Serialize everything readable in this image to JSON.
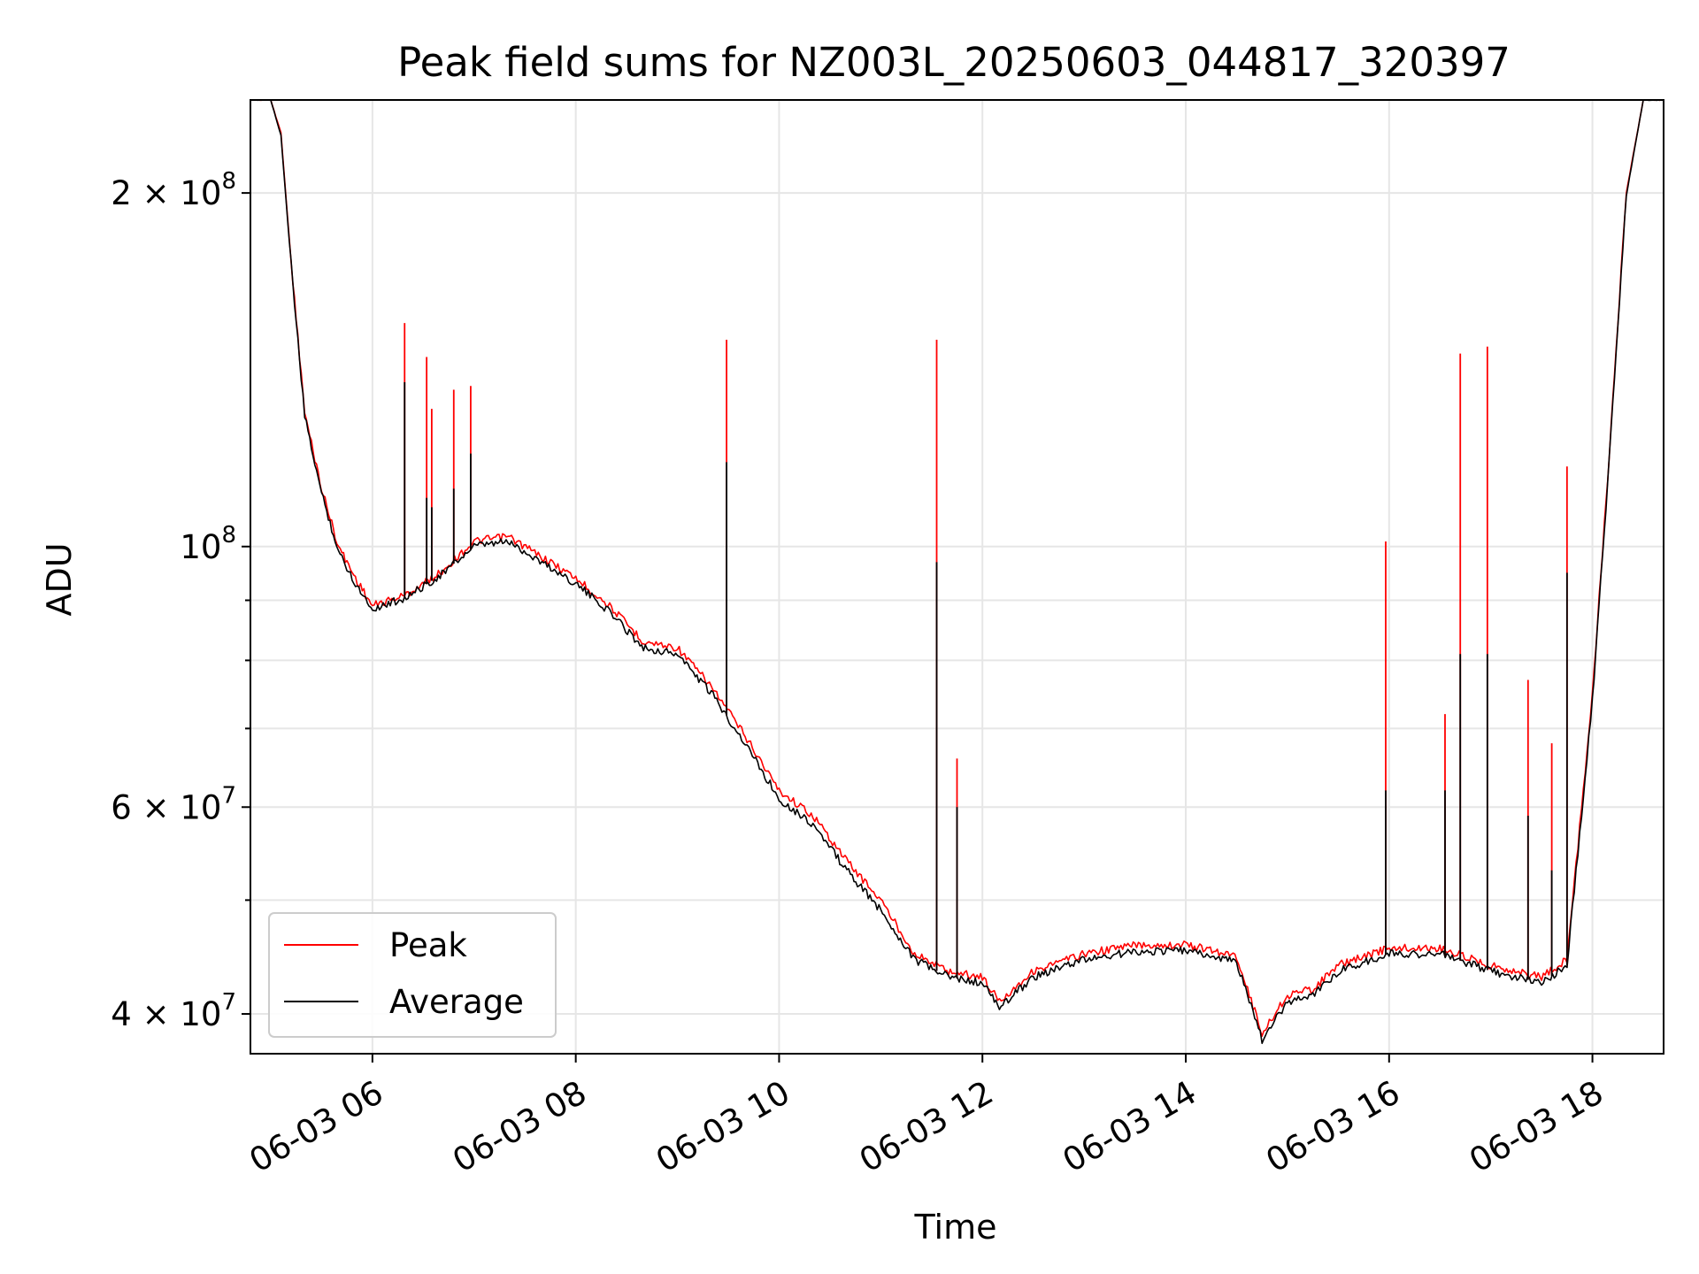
{
  "chart_data": {
    "type": "line",
    "title": "Peak field sums for NZ003L_20250603_044817_320397",
    "xlabel": "Time",
    "ylabel": "ADU",
    "yscale": "log",
    "grid": true,
    "legend_position": "lower-left",
    "xlim": [
      "2025-06-03 04:48",
      "2025-06-03 18:42"
    ],
    "ylim": [
      37000000,
      240000000
    ],
    "x_ticks": [
      {
        "value": "2025-06-03 06:00",
        "label": "06-03 06"
      },
      {
        "value": "2025-06-03 08:00",
        "label": "06-03 08"
      },
      {
        "value": "2025-06-03 10:00",
        "label": "06-03 10"
      },
      {
        "value": "2025-06-03 12:00",
        "label": "06-03 12"
      },
      {
        "value": "2025-06-03 14:00",
        "label": "06-03 14"
      },
      {
        "value": "2025-06-03 16:00",
        "label": "06-03 16"
      },
      {
        "value": "2025-06-03 18:00",
        "label": "06-03 18"
      }
    ],
    "y_ticks": [
      {
        "value": 40000000,
        "mantissa": "4",
        "exp": "7"
      },
      {
        "value": 60000000,
        "mantissa": "6",
        "exp": "7"
      },
      {
        "value": 100000000,
        "mantissa": "",
        "exp": "8"
      },
      {
        "value": 200000000,
        "mantissa": "2",
        "exp": "8"
      }
    ],
    "y_minor_ticks": [
      50000000,
      70000000,
      80000000,
      90000000
    ],
    "series": [
      {
        "name": "Peak",
        "color": "#ff0000",
        "points": [
          [
            "2025-06-03 04:48",
            240000000
          ],
          [
            "2025-06-03 05:00",
            240000000
          ],
          [
            "2025-06-03 05:06",
            225000000
          ],
          [
            "2025-06-03 05:12",
            175000000
          ],
          [
            "2025-06-03 05:20",
            130000000
          ],
          [
            "2025-06-03 05:30",
            112000000
          ],
          [
            "2025-06-03 05:40",
            100000000
          ],
          [
            "2025-06-03 05:50",
            94000000
          ],
          [
            "2025-06-03 06:00",
            89000000
          ],
          [
            "2025-06-03 06:20",
            91000000
          ],
          [
            "2025-06-03 06:40",
            95000000
          ],
          [
            "2025-06-03 07:00",
            101000000
          ],
          [
            "2025-06-03 07:20",
            102000000
          ],
          [
            "2025-06-03 07:40",
            98000000
          ],
          [
            "2025-06-03 08:00",
            94000000
          ],
          [
            "2025-06-03 08:20",
            89000000
          ],
          [
            "2025-06-03 08:40",
            83000000
          ],
          [
            "2025-06-03 09:00",
            82000000
          ],
          [
            "2025-06-03 09:20",
            76000000
          ],
          [
            "2025-06-03 09:40",
            69000000
          ],
          [
            "2025-06-03 10:00",
            62000000
          ],
          [
            "2025-06-03 10:20",
            59000000
          ],
          [
            "2025-06-03 10:40",
            54000000
          ],
          [
            "2025-06-03 11:00",
            50000000
          ],
          [
            "2025-06-03 11:20",
            45000000
          ],
          [
            "2025-06-03 11:40",
            43500000
          ],
          [
            "2025-06-03 12:00",
            43000000
          ],
          [
            "2025-06-03 12:10",
            41000000
          ],
          [
            "2025-06-03 12:30",
            43500000
          ],
          [
            "2025-06-03 13:00",
            45000000
          ],
          [
            "2025-06-03 13:30",
            45800000
          ],
          [
            "2025-06-03 14:00",
            45800000
          ],
          [
            "2025-06-03 14:30",
            44800000
          ],
          [
            "2025-06-03 14:45",
            38500000
          ],
          [
            "2025-06-03 15:00",
            41500000
          ],
          [
            "2025-06-03 15:15",
            42000000
          ],
          [
            "2025-06-03 15:30",
            44000000
          ],
          [
            "2025-06-03 16:00",
            45500000
          ],
          [
            "2025-06-03 16:30",
            45500000
          ],
          [
            "2025-06-03 17:00",
            44000000
          ],
          [
            "2025-06-03 17:30",
            43000000
          ],
          [
            "2025-06-03 17:45",
            44500000
          ],
          [
            "2025-06-03 18:00",
            75000000
          ],
          [
            "2025-06-03 18:10",
            120000000
          ],
          [
            "2025-06-03 18:20",
            200000000
          ],
          [
            "2025-06-03 18:30",
            240000000
          ],
          [
            "2025-06-03 18:42",
            240000000
          ]
        ]
      },
      {
        "name": "Average",
        "color": "#000000",
        "points": [
          [
            "2025-06-03 04:48",
            240000000
          ],
          [
            "2025-06-03 05:00",
            240000000
          ],
          [
            "2025-06-03 05:06",
            224000000
          ],
          [
            "2025-06-03 05:12",
            174000000
          ],
          [
            "2025-06-03 05:20",
            129000000
          ],
          [
            "2025-06-03 05:30",
            111000000
          ],
          [
            "2025-06-03 05:40",
            99000000
          ],
          [
            "2025-06-03 05:50",
            93000000
          ],
          [
            "2025-06-03 06:00",
            88500000
          ],
          [
            "2025-06-03 06:20",
            90500000
          ],
          [
            "2025-06-03 06:40",
            94500000
          ],
          [
            "2025-06-03 07:00",
            100000000
          ],
          [
            "2025-06-03 07:20",
            101000000
          ],
          [
            "2025-06-03 07:40",
            97000000
          ],
          [
            "2025-06-03 08:00",
            93000000
          ],
          [
            "2025-06-03 08:20",
            88000000
          ],
          [
            "2025-06-03 08:40",
            82000000
          ],
          [
            "2025-06-03 09:00",
            81000000
          ],
          [
            "2025-06-03 09:20",
            75000000
          ],
          [
            "2025-06-03 09:40",
            68000000
          ],
          [
            "2025-06-03 10:00",
            61000000
          ],
          [
            "2025-06-03 10:20",
            58000000
          ],
          [
            "2025-06-03 10:40",
            53000000
          ],
          [
            "2025-06-03 11:00",
            49000000
          ],
          [
            "2025-06-03 11:20",
            44500000
          ],
          [
            "2025-06-03 11:40",
            43000000
          ],
          [
            "2025-06-03 12:00",
            42500000
          ],
          [
            "2025-06-03 12:10",
            40500000
          ],
          [
            "2025-06-03 12:30",
            43000000
          ],
          [
            "2025-06-03 13:00",
            44500000
          ],
          [
            "2025-06-03 13:30",
            45200000
          ],
          [
            "2025-06-03 14:00",
            45300000
          ],
          [
            "2025-06-03 14:30",
            44300000
          ],
          [
            "2025-06-03 14:45",
            38000000
          ],
          [
            "2025-06-03 15:00",
            41000000
          ],
          [
            "2025-06-03 15:15",
            41500000
          ],
          [
            "2025-06-03 15:30",
            43500000
          ],
          [
            "2025-06-03 16:00",
            45000000
          ],
          [
            "2025-06-03 16:30",
            45000000
          ],
          [
            "2025-06-03 17:00",
            43500000
          ],
          [
            "2025-06-03 17:30",
            42500000
          ],
          [
            "2025-06-03 17:45",
            44000000
          ],
          [
            "2025-06-03 18:00",
            74000000
          ],
          [
            "2025-06-03 18:10",
            119000000
          ],
          [
            "2025-06-03 18:20",
            199000000
          ],
          [
            "2025-06-03 18:30",
            240000000
          ],
          [
            "2025-06-03 18:42",
            240000000
          ]
        ]
      }
    ],
    "spikes": [
      {
        "x": "2025-06-03 06:19",
        "peak": 155000000,
        "average": 138000000
      },
      {
        "x": "2025-06-03 06:32",
        "peak": 145000000,
        "average": 110000000
      },
      {
        "x": "2025-06-03 06:35",
        "peak": 131000000,
        "average": 108000000
      },
      {
        "x": "2025-06-03 06:48",
        "peak": 136000000,
        "average": 112000000
      },
      {
        "x": "2025-06-03 06:58",
        "peak": 137000000,
        "average": 120000000
      },
      {
        "x": "2025-06-03 09:29",
        "peak": 150000000,
        "average": 118000000
      },
      {
        "x": "2025-06-03 11:33",
        "peak": 150000000,
        "average": 97000000
      },
      {
        "x": "2025-06-03 11:45",
        "peak": 66000000,
        "average": 60000000
      },
      {
        "x": "2025-06-03 15:58",
        "peak": 101000000,
        "average": 62000000
      },
      {
        "x": "2025-06-03 16:33",
        "peak": 72000000,
        "average": 62000000
      },
      {
        "x": "2025-06-03 16:42",
        "peak": 146000000,
        "average": 81000000
      },
      {
        "x": "2025-06-03 16:58",
        "peak": 148000000,
        "average": 81000000
      },
      {
        "x": "2025-06-03 17:22",
        "peak": 77000000,
        "average": 59000000
      },
      {
        "x": "2025-06-03 17:36",
        "peak": 68000000,
        "average": 53000000
      },
      {
        "x": "2025-06-03 17:45",
        "peak": 117000000,
        "average": 95000000
      }
    ]
  }
}
